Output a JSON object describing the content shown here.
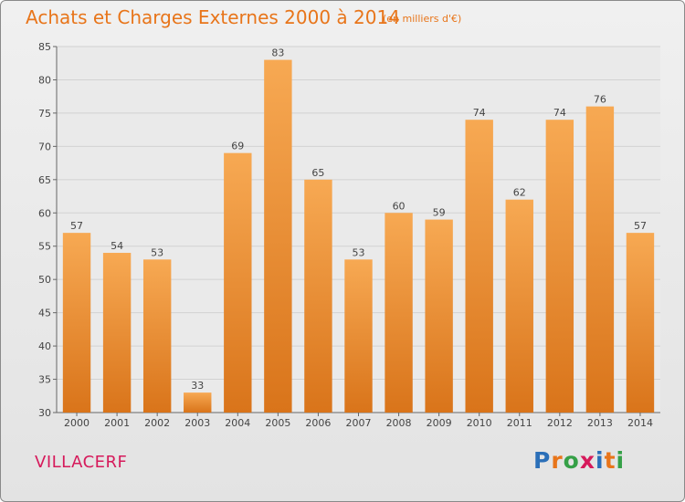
{
  "title": "Achats et Charges Externes 2000 à 2014",
  "subtitle": "(en milliers d'€)",
  "place": "VILLACERF",
  "logo": {
    "text": "Proxiti",
    "colors": [
      "#2b6fb8",
      "#e8751a",
      "#35a047",
      "#d61a5b",
      "#2b6fb8",
      "#e8751a",
      "#35a047"
    ]
  },
  "colors": {
    "bar_light": "#f7a953",
    "bar_dark": "#d9741a",
    "accent": "#e8751a",
    "place": "#d61a5b"
  },
  "chart_data": {
    "type": "bar",
    "categories": [
      "2000",
      "2001",
      "2002",
      "2003",
      "2004",
      "2005",
      "2006",
      "2007",
      "2008",
      "2009",
      "2010",
      "2011",
      "2012",
      "2013",
      "2014"
    ],
    "values": [
      57,
      54,
      53,
      33,
      69,
      83,
      65,
      53,
      60,
      59,
      74,
      62,
      74,
      76,
      57
    ],
    "ylim": [
      30,
      85
    ],
    "yticks": [
      30,
      35,
      40,
      45,
      50,
      55,
      60,
      65,
      70,
      75,
      80,
      85
    ],
    "grid": true,
    "data_labels": true
  }
}
